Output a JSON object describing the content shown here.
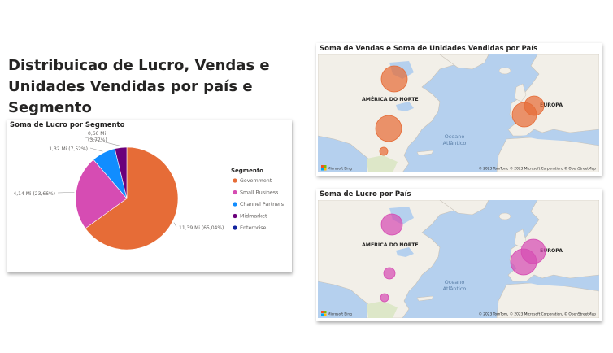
{
  "page_title": "Distribuicao de Lucro, Vendas e Unidades Vendidas por país e Segmento",
  "pie_card": {
    "title": "Soma de Lucro por Segmento",
    "legend_title": "Segmento"
  },
  "chart_data": [
    {
      "type": "pie",
      "title": "Soma de Lucro por Segmento",
      "legend_title": "Segmento",
      "slices": [
        {
          "label": "Government",
          "value": 11.39,
          "value_label": "11,39 Mi (65,04%)",
          "color": "#E66C37"
        },
        {
          "label": "Small Business",
          "value": 4.14,
          "value_label": "4,14 Mi (23,66%)",
          "color": "#D64CB3"
        },
        {
          "label": "Channel Partners",
          "value": 1.32,
          "value_label": "1,32 Mi (7,52%)",
          "color": "#118DFF"
        },
        {
          "label": "Midmarket",
          "value": 0.66,
          "value_label": "0,66 Mi (3,77%)",
          "color": "#6B007B"
        },
        {
          "label": "Enterprise",
          "value": 0,
          "value_label": "",
          "color": "#12239E"
        }
      ]
    }
  ],
  "maps": [
    {
      "title": "Soma de Vendas e Soma de Unidades Vendidas por País",
      "bubble_color": "#E66C37",
      "labels": {
        "north_america": "AMÉRICA DO NORTE",
        "europe": "EUROPA",
        "ocean": "Oceano Atlântico"
      },
      "attribution": "© 2023 TomTom, © 2023 Microsoft Corporation, © OpenStreetMap",
      "logo_text": "Microsoft Bing"
    },
    {
      "title": "Soma de Lucro por País",
      "bubble_color": "#D64CB3",
      "labels": {
        "north_america": "AMÉRICA DO NORTE",
        "europe": "EUROPA",
        "ocean": "Oceano Atlântico"
      },
      "attribution": "© 2023 TomTom, © 2023 Microsoft Corporation, © OpenStreetMap",
      "logo_text": "Microsoft Bing"
    }
  ]
}
